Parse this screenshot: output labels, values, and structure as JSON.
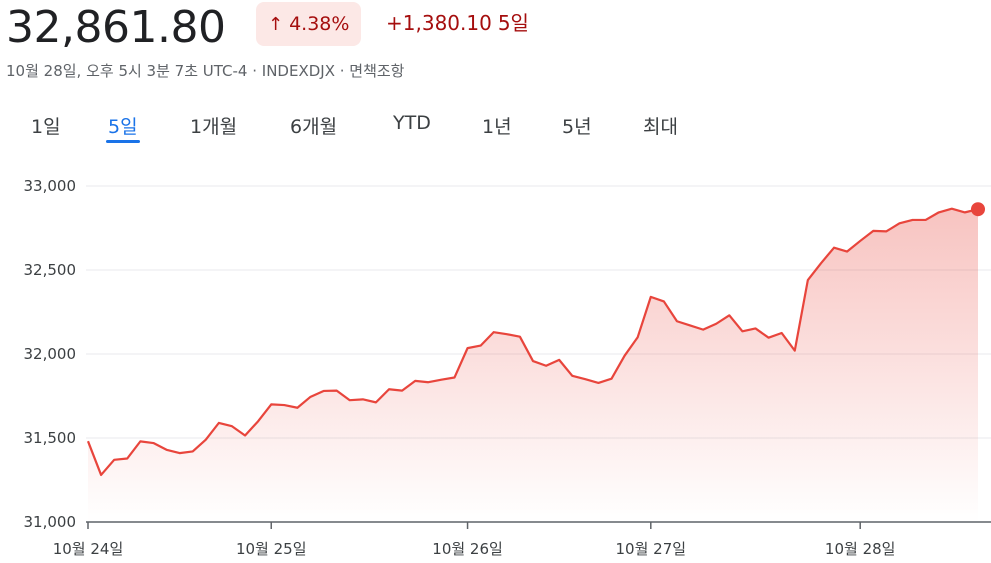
{
  "header": {
    "price": "32,861.80",
    "change_arrow": "↑",
    "change_pct": "4.38%",
    "change_abs": "+1,380.10",
    "change_period": "5일",
    "meta": "10월 28일, 오후 5시 3분 7초 UTC-4 · INDEXDJX · 면책조항",
    "accent_color": "#a50e0e",
    "badge_bg": "#fce8e6"
  },
  "tabs": [
    {
      "label": "1일",
      "active": false
    },
    {
      "label": "5일",
      "active": true
    },
    {
      "label": "1개월",
      "active": false
    },
    {
      "label": "6개월",
      "active": false
    },
    {
      "label": "YTD",
      "active": false
    },
    {
      "label": "1년",
      "active": false
    },
    {
      "label": "5년",
      "active": false
    },
    {
      "label": "최대",
      "active": false
    }
  ],
  "chart_data": {
    "type": "area",
    "title": "",
    "xlabel": "",
    "ylabel": "",
    "ylim": [
      31000,
      33000
    ],
    "yticks": [
      31000,
      31500,
      32000,
      32500,
      33000
    ],
    "ytick_labels": [
      "31,000",
      "31,500",
      "32,000",
      "32,500",
      "33,000"
    ],
    "xtick_labels": [
      "10월 24일",
      "10월 25일",
      "10월 26일",
      "10월 27일",
      "10월 28일"
    ],
    "line_color": "#e8453c",
    "grid": true,
    "series": [
      {
        "values": [
          31481,
          31280,
          31370,
          31378,
          31480,
          31470,
          31430,
          31410,
          31420,
          31490,
          31590,
          31570,
          31515,
          31600,
          31700,
          31696,
          31680,
          31745,
          31780,
          31782,
          31725,
          31730,
          31712,
          31790,
          31782,
          31840,
          31832,
          31847,
          31860,
          32035,
          32050,
          32130,
          32118,
          32103,
          31958,
          31930,
          31965,
          31870,
          31850,
          31828,
          31853,
          31990,
          32100,
          32340,
          32313,
          32195,
          32170,
          32145,
          32180,
          32230,
          32135,
          32152,
          32097,
          32125,
          32020,
          32440,
          32540,
          32633,
          32610,
          32673,
          32733,
          32730,
          32778,
          32798,
          32798,
          32843,
          32865,
          32843,
          32861.8
        ]
      }
    ],
    "day_start_indices": [
      0,
      14,
      29,
      43,
      59
    ]
  }
}
